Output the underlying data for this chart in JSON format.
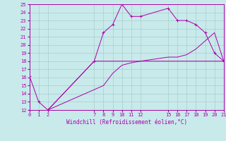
{
  "background_color": "#c8eaea",
  "grid_color": "#aacccc",
  "line_color": "#aa00aa",
  "marker": "+",
  "xlabel": "Windchill (Refroidissement éolien,°C)",
  "xlabel_color": "#aa00aa",
  "ylim": [
    12,
    25
  ],
  "xlim": [
    0,
    21
  ],
  "yticks": [
    12,
    13,
    14,
    15,
    16,
    17,
    18,
    19,
    20,
    21,
    22,
    23,
    24,
    25
  ],
  "xticks": [
    0,
    1,
    2,
    7,
    8,
    9,
    10,
    11,
    12,
    15,
    16,
    17,
    18,
    19,
    20,
    21
  ],
  "line1_x": [
    0,
    1,
    2,
    7,
    8,
    9,
    10,
    11,
    12,
    15,
    16,
    17,
    18,
    19,
    20,
    21
  ],
  "line1_y": [
    16.2,
    13.0,
    12.0,
    18.0,
    21.5,
    22.5,
    25.0,
    23.5,
    23.5,
    24.5,
    23.0,
    23.0,
    22.5,
    21.5,
    19.0,
    18.0
  ],
  "line2_x": [
    2,
    7,
    8,
    9,
    10,
    11,
    12,
    15,
    16,
    17,
    18,
    19,
    20,
    21
  ],
  "line2_y": [
    12.0,
    18.0,
    18.0,
    18.0,
    18.0,
    18.0,
    18.0,
    18.0,
    18.0,
    18.0,
    18.0,
    18.0,
    18.0,
    18.0
  ],
  "line3_x": [
    2,
    7,
    8,
    9,
    10,
    11,
    12,
    15,
    16,
    17,
    18,
    19,
    20,
    21
  ],
  "line3_y": [
    12.0,
    14.5,
    15.0,
    16.5,
    17.5,
    17.8,
    18.0,
    18.5,
    18.5,
    18.8,
    19.5,
    20.5,
    21.5,
    18.0
  ],
  "lw": 0.7,
  "ms": 2.5,
  "tick_fontsize": 5,
  "xlabel_fontsize": 5.5
}
